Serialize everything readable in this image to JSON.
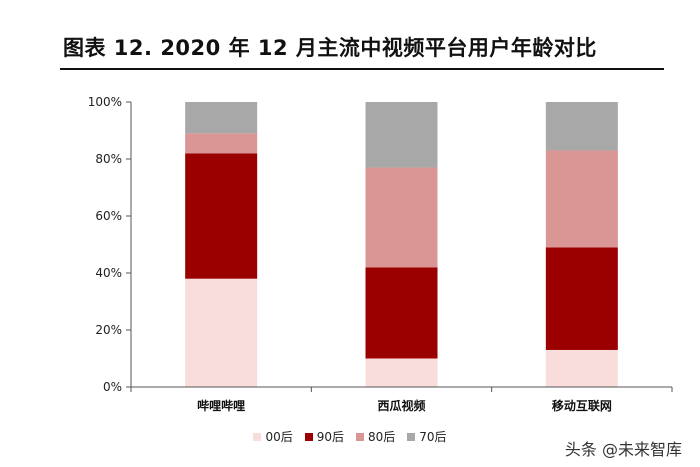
{
  "title": "图表 12. 2020 年 12 月主流中视频平台用户年龄对比",
  "watermark": "头条 @未来智库",
  "chart_data": {
    "type": "bar",
    "stacked": true,
    "percent": true,
    "categories": [
      "哔哩哔哩",
      "西瓜视频",
      "移动互联网"
    ],
    "yticks": [
      "0%",
      "20%",
      "40%",
      "60%",
      "80%",
      "100%"
    ],
    "ylim": [
      0,
      100
    ],
    "grid": false,
    "legend_position": "bottom",
    "series": [
      {
        "name": "00后",
        "color": "#f9dcdc",
        "values": [
          38,
          10,
          13
        ]
      },
      {
        "name": "90后",
        "color": "#9b0000",
        "values": [
          44,
          32,
          36
        ]
      },
      {
        "name": "80后",
        "color": "#da9595",
        "values": [
          7,
          35,
          34
        ]
      },
      {
        "name": "70后",
        "color": "#a8a8a8",
        "values": [
          11,
          23,
          17
        ]
      }
    ]
  }
}
